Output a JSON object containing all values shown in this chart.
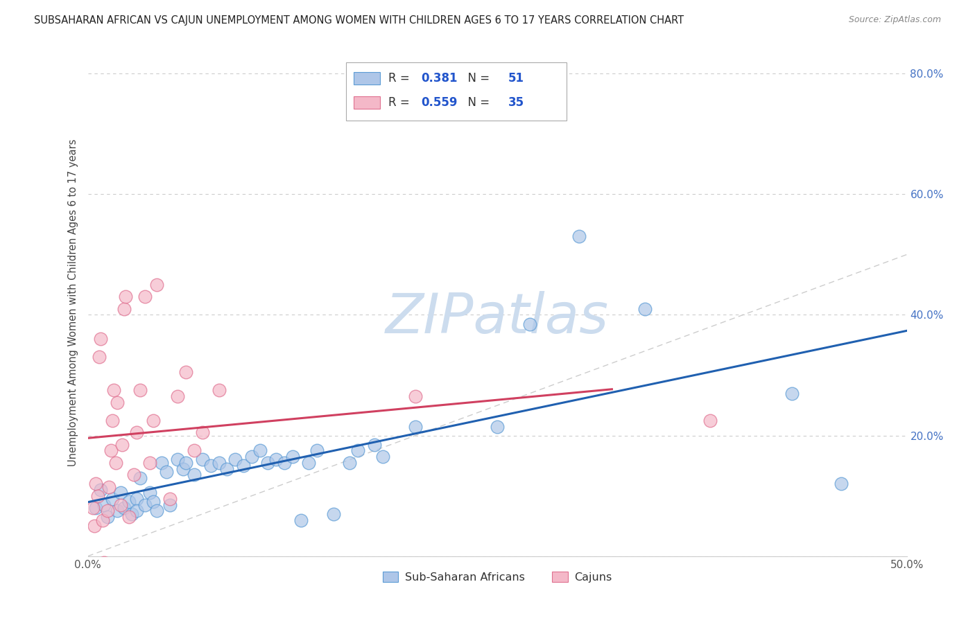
{
  "title": "SUBSAHARAN AFRICAN VS CAJUN UNEMPLOYMENT AMONG WOMEN WITH CHILDREN AGES 6 TO 17 YEARS CORRELATION CHART",
  "source": "Source: ZipAtlas.com",
  "ylabel": "Unemployment Among Women with Children Ages 6 to 17 years",
  "xlim": [
    0.0,
    0.5
  ],
  "ylim": [
    0.0,
    0.84
  ],
  "r_blue": 0.381,
  "n_blue": 51,
  "r_pink": 0.559,
  "n_pink": 35,
  "blue_fill": "#aec6e8",
  "blue_edge": "#5b9bd5",
  "pink_fill": "#f4b8c8",
  "pink_edge": "#e07090",
  "blue_line": "#2060b0",
  "pink_line": "#d04060",
  "blue_scatter": [
    [
      0.005,
      0.08
    ],
    [
      0.008,
      0.11
    ],
    [
      0.01,
      0.085
    ],
    [
      0.012,
      0.065
    ],
    [
      0.015,
      0.095
    ],
    [
      0.018,
      0.075
    ],
    [
      0.02,
      0.105
    ],
    [
      0.022,
      0.08
    ],
    [
      0.025,
      0.09
    ],
    [
      0.027,
      0.07
    ],
    [
      0.03,
      0.095
    ],
    [
      0.03,
      0.075
    ],
    [
      0.032,
      0.13
    ],
    [
      0.035,
      0.085
    ],
    [
      0.038,
      0.105
    ],
    [
      0.04,
      0.09
    ],
    [
      0.042,
      0.075
    ],
    [
      0.045,
      0.155
    ],
    [
      0.048,
      0.14
    ],
    [
      0.05,
      0.085
    ],
    [
      0.055,
      0.16
    ],
    [
      0.058,
      0.145
    ],
    [
      0.06,
      0.155
    ],
    [
      0.065,
      0.135
    ],
    [
      0.07,
      0.16
    ],
    [
      0.075,
      0.15
    ],
    [
      0.08,
      0.155
    ],
    [
      0.085,
      0.145
    ],
    [
      0.09,
      0.16
    ],
    [
      0.095,
      0.15
    ],
    [
      0.1,
      0.165
    ],
    [
      0.105,
      0.175
    ],
    [
      0.11,
      0.155
    ],
    [
      0.115,
      0.16
    ],
    [
      0.12,
      0.155
    ],
    [
      0.125,
      0.165
    ],
    [
      0.13,
      0.06
    ],
    [
      0.135,
      0.155
    ],
    [
      0.14,
      0.175
    ],
    [
      0.15,
      0.07
    ],
    [
      0.16,
      0.155
    ],
    [
      0.165,
      0.175
    ],
    [
      0.175,
      0.185
    ],
    [
      0.18,
      0.165
    ],
    [
      0.2,
      0.215
    ],
    [
      0.25,
      0.215
    ],
    [
      0.27,
      0.385
    ],
    [
      0.3,
      0.53
    ],
    [
      0.34,
      0.41
    ],
    [
      0.43,
      0.27
    ],
    [
      0.46,
      0.12
    ]
  ],
  "pink_scatter": [
    [
      0.003,
      0.08
    ],
    [
      0.004,
      0.05
    ],
    [
      0.005,
      0.12
    ],
    [
      0.006,
      0.1
    ],
    [
      0.007,
      0.33
    ],
    [
      0.008,
      0.36
    ],
    [
      0.009,
      0.06
    ],
    [
      0.01,
      -0.01
    ],
    [
      0.012,
      0.075
    ],
    [
      0.013,
      0.115
    ],
    [
      0.014,
      0.175
    ],
    [
      0.015,
      0.225
    ],
    [
      0.016,
      0.275
    ],
    [
      0.017,
      0.155
    ],
    [
      0.018,
      0.255
    ],
    [
      0.02,
      0.085
    ],
    [
      0.021,
      0.185
    ],
    [
      0.022,
      0.41
    ],
    [
      0.023,
      0.43
    ],
    [
      0.025,
      0.065
    ],
    [
      0.028,
      0.135
    ],
    [
      0.03,
      0.205
    ],
    [
      0.032,
      0.275
    ],
    [
      0.035,
      0.43
    ],
    [
      0.038,
      0.155
    ],
    [
      0.04,
      0.225
    ],
    [
      0.042,
      0.45
    ],
    [
      0.05,
      0.095
    ],
    [
      0.055,
      0.265
    ],
    [
      0.06,
      0.305
    ],
    [
      0.065,
      0.175
    ],
    [
      0.07,
      0.205
    ],
    [
      0.08,
      0.275
    ],
    [
      0.2,
      0.265
    ],
    [
      0.38,
      0.225
    ]
  ],
  "watermark": "ZIPatlas",
  "watermark_color": "#ccdcee",
  "bg": "#ffffff",
  "grid_color": "#cccccc"
}
